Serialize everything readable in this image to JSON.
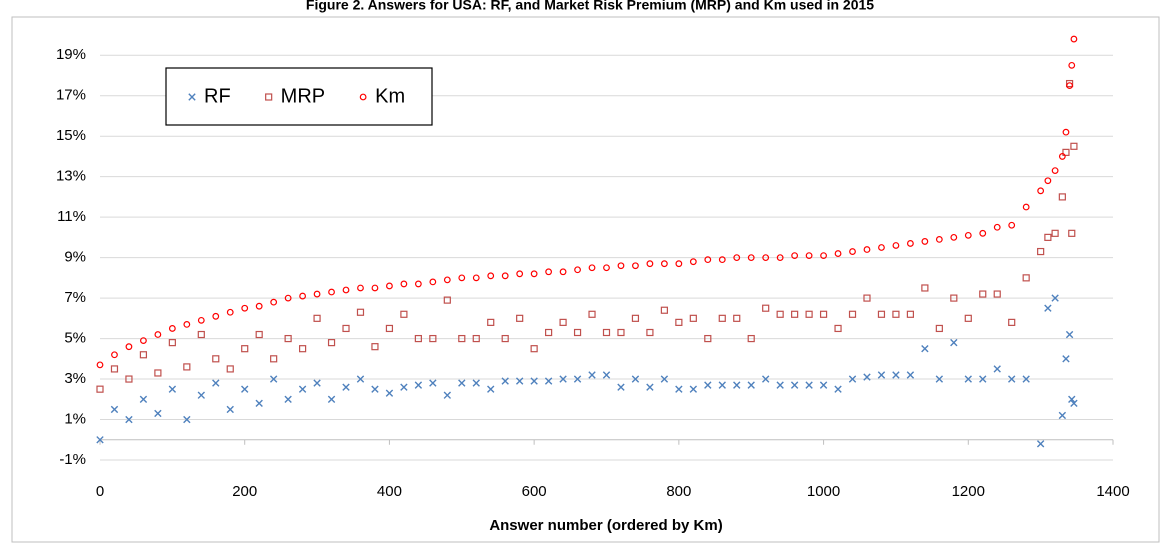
{
  "chart_data": {
    "type": "scatter",
    "title": "Figure 2. Answers for USA: RF, and Market Risk Premium (MRP) and Km used in 2015",
    "x_label": "Answer number (ordered by Km)",
    "x": [
      0,
      20,
      40,
      60,
      80,
      100,
      120,
      140,
      160,
      180,
      200,
      220,
      240,
      260,
      280,
      300,
      320,
      340,
      360,
      380,
      400,
      420,
      440,
      460,
      480,
      500,
      520,
      540,
      560,
      580,
      600,
      620,
      640,
      660,
      680,
      700,
      720,
      740,
      760,
      780,
      800,
      820,
      840,
      860,
      880,
      900,
      920,
      940,
      960,
      980,
      1000,
      1020,
      1040,
      1060,
      1080,
      1100,
      1120,
      1140,
      1160,
      1180,
      1200,
      1220,
      1240,
      1260,
      1280,
      1300,
      1310,
      1320,
      1330,
      1335,
      1340,
      1343,
      1346
    ],
    "series": [
      {
        "name": "RF",
        "color": "#4f81bd",
        "marker": "cross",
        "values": [
          0,
          1.5,
          1.0,
          2.0,
          1.3,
          2.5,
          1.0,
          2.2,
          2.8,
          1.5,
          2.5,
          1.8,
          3.0,
          2.0,
          2.5,
          2.8,
          2.0,
          2.6,
          3.0,
          2.5,
          2.3,
          2.6,
          2.7,
          2.8,
          2.2,
          2.8,
          2.8,
          2.5,
          2.9,
          2.9,
          2.9,
          2.9,
          3.0,
          3.0,
          3.2,
          3.2,
          2.6,
          3.0,
          2.6,
          3.0,
          2.5,
          2.5,
          2.7,
          2.7,
          2.7,
          2.7,
          3.0,
          2.7,
          2.7,
          2.7,
          2.7,
          2.5,
          3.0,
          3.1,
          3.2,
          3.2,
          3.2,
          4.5,
          3.0,
          4.8,
          3.0,
          3.0,
          3.5,
          3.0,
          3.0,
          -0.2,
          6.5,
          7.0,
          1.2,
          4.0,
          5.2,
          2.0,
          1.8
        ]
      },
      {
        "name": "MRP",
        "color": "#c0504d",
        "marker": "square",
        "values": [
          2.5,
          3.5,
          3.0,
          4.2,
          3.3,
          4.8,
          3.6,
          5.2,
          4.0,
          3.5,
          4.5,
          5.2,
          4.0,
          5.0,
          4.5,
          6.0,
          4.8,
          5.5,
          6.3,
          4.6,
          5.5,
          6.2,
          5.0,
          5.0,
          6.9,
          5.0,
          5.0,
          5.8,
          5.0,
          6.0,
          4.5,
          5.3,
          5.8,
          5.3,
          6.2,
          5.3,
          5.3,
          6.0,
          5.3,
          6.4,
          5.8,
          6.0,
          5.0,
          6.0,
          6.0,
          5.0,
          6.5,
          6.2,
          6.2,
          6.2,
          6.2,
          5.5,
          6.2,
          7.0,
          6.2,
          6.2,
          6.2,
          7.5,
          5.5,
          7.0,
          6.0,
          7.2,
          7.2,
          5.8,
          8.0,
          9.3,
          10.0,
          10.2,
          12.0,
          14.2,
          17.6,
          10.2,
          14.5
        ]
      },
      {
        "name": "Km",
        "color": "#ff0000",
        "marker": "circle",
        "values": [
          3.7,
          4.2,
          4.6,
          4.9,
          5.2,
          5.5,
          5.7,
          5.9,
          6.1,
          6.3,
          6.5,
          6.6,
          6.8,
          7.0,
          7.1,
          7.2,
          7.3,
          7.4,
          7.5,
          7.5,
          7.6,
          7.7,
          7.7,
          7.8,
          7.9,
          8.0,
          8.0,
          8.1,
          8.1,
          8.2,
          8.2,
          8.3,
          8.3,
          8.4,
          8.5,
          8.5,
          8.6,
          8.6,
          8.7,
          8.7,
          8.7,
          8.8,
          8.9,
          8.9,
          9.0,
          9.0,
          9.0,
          9.0,
          9.1,
          9.1,
          9.1,
          9.2,
          9.3,
          9.4,
          9.5,
          9.6,
          9.7,
          9.8,
          9.9,
          10.0,
          10.1,
          10.2,
          10.5,
          10.6,
          11.5,
          12.3,
          12.8,
          13.3,
          14.0,
          15.2,
          17.5,
          18.5,
          19.8
        ]
      }
    ],
    "xlim": [
      0,
      1400
    ],
    "xticks": [
      0,
      200,
      400,
      600,
      800,
      1000,
      1200,
      1400
    ],
    "ylim": [
      -1,
      20
    ],
    "yticks": [
      {
        "value": -1,
        "label": "-1%"
      },
      {
        "value": 1,
        "label": "1%"
      },
      {
        "value": 3,
        "label": "3%"
      },
      {
        "value": 5,
        "label": "5%"
      },
      {
        "value": 7,
        "label": "7%"
      },
      {
        "value": 9,
        "label": "9%"
      },
      {
        "value": 11,
        "label": "11%"
      },
      {
        "value": 13,
        "label": "13%"
      },
      {
        "value": 15,
        "label": "15%"
      },
      {
        "value": 17,
        "label": "17%"
      },
      {
        "value": 19,
        "label": "19%"
      }
    ],
    "grid": true,
    "legend": "upper-left"
  }
}
